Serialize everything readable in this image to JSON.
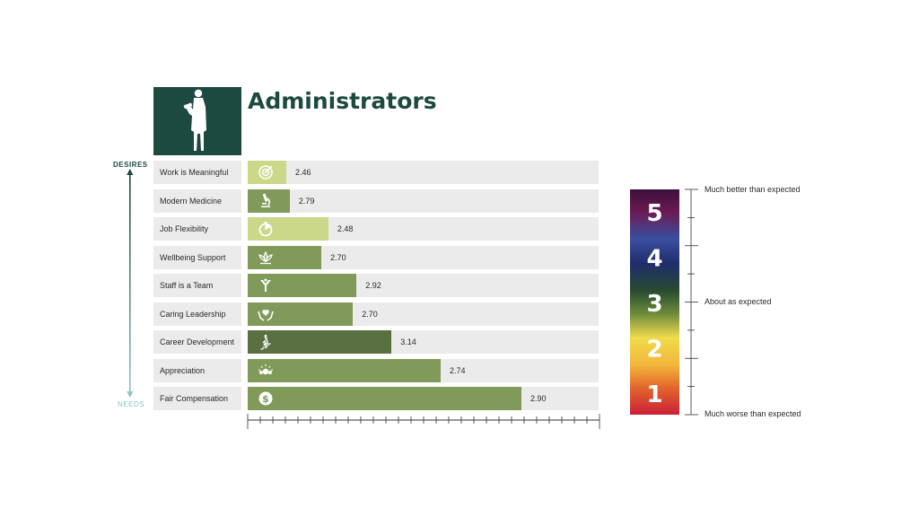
{
  "header": {
    "title": "Administrators",
    "icon": "administrator-silhouette-icon"
  },
  "axis": {
    "top_label": "DESIRES",
    "bottom_label": "NEEDS"
  },
  "colors": {
    "dark_green": "#1c4a40",
    "needs_teal": "#8cc6c4",
    "track_gray": "#ebebeb"
  },
  "chart_data": {
    "type": "bar",
    "orientation": "horizontal",
    "title": "Administrators",
    "categories": [
      "Work is Meaningful",
      "Modern Medicine",
      "Job Flexibility",
      "Wellbeing Support",
      "Staff is a Team",
      "Caring Leadership",
      "Career Development",
      "Appreciation",
      "Fair Compensation"
    ],
    "score_labels": [
      "2.46",
      "2.79",
      "2.48",
      "2.70",
      "2.92",
      "2.70",
      "3.14",
      "2.74",
      "2.90"
    ],
    "importance": [
      0.11,
      0.12,
      0.23,
      0.21,
      0.31,
      0.3,
      0.41,
      0.55,
      0.78
    ],
    "bar_colors": [
      "#cbd889",
      "#7f9a59",
      "#cbd889",
      "#7f9a59",
      "#7f9a59",
      "#7f9a59",
      "#5a6f42",
      "#7f9a59",
      "#7f9a59"
    ],
    "icons": [
      "target-icon",
      "microscope-icon",
      "stopwatch-icon",
      "lotus-icon",
      "team-hands-icon",
      "caring-hands-heart-icon",
      "stairs-climber-icon",
      "applause-icon",
      "dollar-coin-icon"
    ],
    "ylim": [
      0,
      1
    ],
    "tick_count": 28
  },
  "legend": {
    "numbers": [
      "5",
      "4",
      "3",
      "2",
      "1"
    ],
    "labels": {
      "top": "Much better than expected",
      "middle": "About as expected",
      "bottom": "Much worse than expected"
    },
    "colors": [
      "#3d0f3c",
      "#2e3f92",
      "#284b30",
      "#f0dc4c",
      "#ca2039"
    ]
  }
}
